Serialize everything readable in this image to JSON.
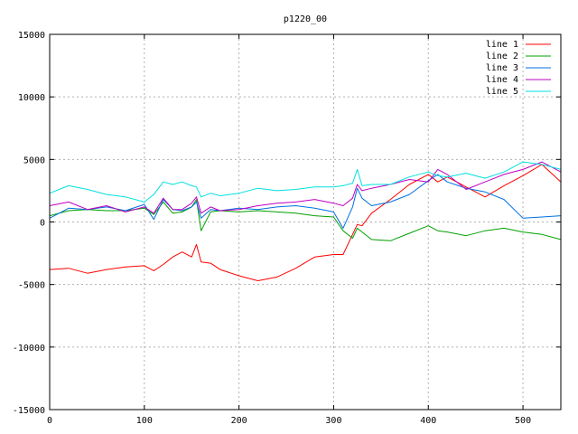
{
  "chart_data": {
    "type": "line",
    "title": "p1220_00",
    "xlabel": "",
    "ylabel": "",
    "xlim": [
      0,
      540
    ],
    "ylim": [
      -15000,
      15000
    ],
    "x_ticks": [
      0,
      100,
      200,
      300,
      400,
      500
    ],
    "y_ticks": [
      15000,
      10000,
      5000,
      0,
      -5000,
      -10000,
      -15000
    ],
    "grid": true,
    "legend_position": "top-right",
    "x": [
      0,
      20,
      40,
      60,
      80,
      100,
      110,
      120,
      130,
      140,
      150,
      155,
      160,
      170,
      180,
      200,
      220,
      240,
      260,
      280,
      300,
      310,
      320,
      325,
      330,
      340,
      360,
      380,
      400,
      410,
      420,
      440,
      460,
      480,
      500,
      520,
      540
    ],
    "series": [
      {
        "name": "line 1",
        "color": "#ff0000",
        "values": [
          -3800,
          -3700,
          -4100,
          -3800,
          -3600,
          -3500,
          -3900,
          -3400,
          -2800,
          -2400,
          -2800,
          -1800,
          -3200,
          -3300,
          -3800,
          -4300,
          -4700,
          -4400,
          -3700,
          -2800,
          -2600,
          -2600,
          -1000,
          -200,
          -300,
          700,
          1800,
          3000,
          3800,
          3200,
          3600,
          2800,
          2000,
          2900,
          3700,
          4600,
          3200
        ]
      },
      {
        "name": "line 2",
        "color": "#00a000",
        "values": [
          500,
          900,
          1000,
          900,
          900,
          1100,
          600,
          1600,
          700,
          800,
          1200,
          1800,
          -700,
          800,
          900,
          800,
          900,
          800,
          700,
          500,
          400,
          -700,
          -1300,
          -500,
          -800,
          -1400,
          -1500,
          -900,
          -300,
          -700,
          -800,
          -1100,
          -700,
          -500,
          -800,
          -1000,
          -1400
        ]
      },
      {
        "name": "line 3",
        "color": "#0070e0",
        "values": [
          300,
          1100,
          1000,
          1200,
          900,
          1400,
          200,
          1800,
          1000,
          900,
          1200,
          1600,
          300,
          1000,
          900,
          1100,
          1000,
          1200,
          1300,
          1100,
          800,
          -500,
          1200,
          2700,
          1900,
          1300,
          1600,
          2200,
          3300,
          3800,
          3200,
          2700,
          2400,
          1800,
          300,
          400,
          500
        ]
      },
      {
        "name": "line 4",
        "color": "#c000c0",
        "values": [
          1300,
          1600,
          1000,
          1300,
          800,
          1200,
          700,
          1900,
          1000,
          1000,
          1500,
          2000,
          700,
          1200,
          900,
          1000,
          1300,
          1500,
          1600,
          1800,
          1500,
          1300,
          1900,
          3000,
          2500,
          2700,
          3000,
          3400,
          3200,
          4200,
          3800,
          2600,
          3200,
          3800,
          4200,
          4800,
          4000
        ]
      },
      {
        "name": "line 5",
        "color": "#00e0e0",
        "values": [
          2300,
          2900,
          2600,
          2200,
          2000,
          1600,
          2200,
          3200,
          3000,
          3200,
          2900,
          2800,
          2000,
          2300,
          2100,
          2300,
          2700,
          2500,
          2600,
          2800,
          2800,
          2900,
          3100,
          4200,
          2900,
          3000,
          3000,
          3600,
          4000,
          3700,
          3600,
          3900,
          3500,
          4000,
          4800,
          4600,
          4200
        ]
      }
    ]
  }
}
